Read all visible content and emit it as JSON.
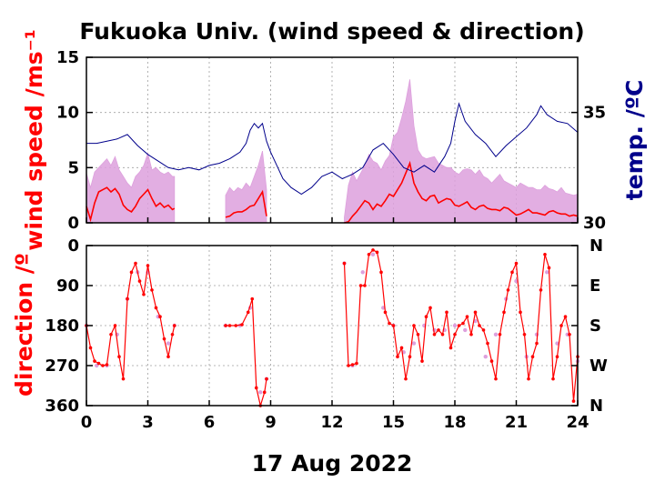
{
  "title": "Fukuoka Univ. (wind speed & direction)",
  "date_label": "17 Aug 2022",
  "colors": {
    "wind_mean": "#ff0000",
    "wind_gust": "#dda0dd",
    "temperature": "#00008b",
    "direction_mean": "#ff0000",
    "direction_scatter": "#dda0dd",
    "axis": "#000000",
    "grid": "#a0a0a0"
  },
  "chart_data": [
    {
      "type": "area",
      "panel": "speed",
      "ylabel": "wind speed /ms⁻¹",
      "y2label": "temp. /ºC",
      "xlim": [
        0,
        24
      ],
      "ylim": [
        0,
        15
      ],
      "y2lim": [
        30,
        37.5
      ],
      "x_ticks": [
        "0",
        "3",
        "6",
        "9",
        "12",
        "15",
        "18",
        "21",
        "24"
      ],
      "y_ticks": [
        "0",
        "5",
        "10",
        "15"
      ],
      "y2_ticks": [
        "30",
        "35"
      ],
      "grid": true,
      "data_gaps_hours": [
        [
          4.3,
          6.8
        ],
        [
          8.8,
          12.6
        ]
      ],
      "series": [
        {
          "name": "mean wind speed",
          "x": [
            0,
            0.2,
            0.4,
            0.6,
            0.8,
            1.0,
            1.2,
            1.4,
            1.6,
            1.8,
            2.0,
            2.2,
            2.4,
            2.6,
            2.8,
            3.0,
            3.2,
            3.4,
            3.6,
            3.8,
            4.0,
            4.2,
            4.3,
            6.8,
            7.0,
            7.2,
            7.4,
            7.6,
            7.8,
            8.0,
            8.2,
            8.4,
            8.6,
            8.8,
            12.6,
            12.8,
            13.0,
            13.2,
            13.4,
            13.6,
            13.8,
            14.0,
            14.2,
            14.4,
            14.6,
            14.8,
            15.0,
            15.2,
            15.4,
            15.6,
            15.8,
            16.0,
            16.2,
            16.4,
            16.6,
            16.8,
            17.0,
            17.2,
            17.4,
            17.6,
            17.8,
            18.0,
            18.2,
            18.4,
            18.6,
            18.8,
            19.0,
            19.2,
            19.4,
            19.6,
            19.8,
            20.0,
            20.2,
            20.4,
            20.6,
            20.8,
            21.0,
            21.2,
            21.4,
            21.6,
            21.8,
            22.0,
            22.2,
            22.4,
            22.6,
            22.8,
            23.0,
            23.2,
            23.4,
            23.6,
            23.8,
            24.0
          ],
          "values": [
            1.5,
            0.3,
            1.8,
            2.8,
            3.0,
            3.2,
            2.8,
            3.1,
            2.6,
            1.6,
            1.2,
            1.0,
            1.5,
            2.2,
            2.6,
            3.0,
            2.2,
            1.5,
            1.8,
            1.4,
            1.6,
            1.2,
            1.3,
            0.5,
            0.6,
            0.9,
            1.0,
            1.0,
            1.2,
            1.5,
            1.6,
            2.2,
            2.8,
            0.6,
            0.0,
            0.1,
            0.6,
            1.0,
            1.5,
            2.0,
            1.8,
            1.2,
            1.7,
            1.5,
            2.0,
            2.6,
            2.4,
            3.0,
            3.6,
            4.5,
            5.4,
            3.6,
            2.8,
            2.2,
            2.0,
            2.4,
            2.5,
            1.8,
            2.0,
            2.2,
            2.1,
            1.6,
            1.5,
            1.7,
            1.9,
            1.4,
            1.2,
            1.5,
            1.6,
            1.3,
            1.2,
            1.2,
            1.1,
            1.4,
            1.3,
            1.0,
            0.7,
            0.8,
            1.0,
            1.2,
            0.9,
            0.9,
            0.8,
            0.7,
            1.0,
            1.1,
            0.9,
            0.8,
            0.8,
            0.6,
            0.7,
            0.6
          ]
        },
        {
          "name": "gust",
          "x": [
            0,
            0.2,
            0.4,
            0.6,
            0.8,
            1.0,
            1.2,
            1.4,
            1.6,
            1.8,
            2.0,
            2.2,
            2.4,
            2.6,
            2.8,
            3.0,
            3.2,
            3.4,
            3.6,
            3.8,
            4.0,
            4.2,
            4.3,
            6.8,
            7.0,
            7.2,
            7.4,
            7.6,
            7.8,
            8.0,
            8.2,
            8.4,
            8.6,
            8.8,
            12.6,
            12.8,
            13.0,
            13.2,
            13.4,
            13.6,
            13.8,
            14.0,
            14.2,
            14.4,
            14.6,
            14.8,
            15.0,
            15.2,
            15.4,
            15.6,
            15.8,
            16.0,
            16.2,
            16.4,
            16.6,
            16.8,
            17.0,
            17.2,
            17.4,
            17.6,
            17.8,
            18.0,
            18.2,
            18.4,
            18.6,
            18.8,
            19.0,
            19.2,
            19.4,
            19.6,
            19.8,
            20.0,
            20.2,
            20.4,
            20.6,
            20.8,
            21.0,
            21.2,
            21.4,
            21.6,
            21.8,
            22.0,
            22.2,
            22.4,
            22.6,
            22.8,
            23.0,
            23.2,
            23.4,
            23.6,
            23.8,
            24.0
          ],
          "values": [
            4.5,
            3.2,
            4.6,
            5.0,
            5.4,
            5.8,
            5.2,
            6.0,
            4.8,
            4.2,
            3.6,
            3.2,
            4.2,
            4.6,
            5.2,
            6.3,
            4.8,
            5.0,
            4.6,
            4.4,
            4.6,
            4.2,
            4.2,
            2.5,
            3.2,
            2.8,
            3.2,
            3.0,
            3.6,
            3.2,
            4.2,
            5.2,
            6.5,
            3.0,
            0.5,
            3.4,
            4.6,
            3.8,
            4.5,
            5.2,
            6.2,
            5.6,
            5.4,
            4.8,
            5.6,
            6.1,
            7.8,
            8.2,
            9.5,
            11.0,
            13.0,
            8.8,
            6.6,
            6.0,
            5.8,
            5.9,
            6.0,
            5.4,
            5.2,
            5.0,
            5.0,
            4.6,
            4.4,
            4.8,
            4.9,
            4.8,
            4.4,
            4.8,
            4.2,
            4.0,
            3.6,
            4.0,
            4.4,
            3.8,
            3.6,
            3.4,
            3.2,
            3.6,
            3.4,
            3.2,
            3.2,
            3.0,
            3.0,
            3.4,
            3.1,
            3.0,
            2.8,
            3.2,
            2.7,
            2.6,
            2.5,
            2.6
          ]
        },
        {
          "name": "temperature",
          "axis": "y2",
          "x": [
            0,
            0.5,
            1.0,
            1.5,
            2.0,
            2.5,
            3.0,
            3.5,
            4.0,
            4.5,
            5.0,
            5.5,
            6.0,
            6.5,
            7.0,
            7.5,
            7.8,
            8.0,
            8.2,
            8.4,
            8.6,
            8.8,
            9.0,
            9.3,
            9.6,
            10.0,
            10.5,
            11.0,
            11.5,
            12.0,
            12.5,
            13.0,
            13.5,
            14.0,
            14.5,
            15.0,
            15.5,
            16.0,
            16.5,
            17.0,
            17.5,
            17.8,
            18.0,
            18.2,
            18.5,
            19.0,
            19.5,
            20.0,
            20.5,
            21.0,
            21.5,
            22.0,
            22.2,
            22.5,
            23.0,
            23.5,
            24.0
          ],
          "values": [
            33.6,
            33.6,
            33.7,
            33.8,
            34.0,
            33.5,
            33.1,
            32.8,
            32.5,
            32.4,
            32.5,
            32.4,
            32.6,
            32.7,
            32.9,
            33.2,
            33.6,
            34.2,
            34.5,
            34.3,
            34.5,
            33.7,
            33.2,
            32.6,
            32.0,
            31.6,
            31.3,
            31.6,
            32.1,
            32.3,
            32.0,
            32.2,
            32.5,
            33.3,
            33.6,
            33.1,
            32.5,
            32.3,
            32.6,
            32.3,
            33.0,
            33.6,
            34.6,
            35.4,
            34.6,
            34.0,
            33.6,
            33.0,
            33.5,
            33.9,
            34.3,
            34.9,
            35.3,
            34.9,
            34.6,
            34.5,
            34.1
          ]
        }
      ]
    },
    {
      "type": "scatter",
      "panel": "direction",
      "ylabel": "direction /º",
      "xlabel": "17 Aug 2022",
      "xlim": [
        0,
        24
      ],
      "ylim": [
        0,
        360
      ],
      "y_axis_inverted": true,
      "x_ticks": [
        "0",
        "3",
        "6",
        "9",
        "12",
        "15",
        "18",
        "21",
        "24"
      ],
      "y_ticks": [
        "0",
        "90",
        "180",
        "270",
        "360"
      ],
      "y2_ticks": [
        "N",
        "E",
        "S",
        "W",
        "N"
      ],
      "grid": true,
      "series": [
        {
          "name": "mean direction",
          "x": [
            0,
            0.2,
            0.4,
            0.6,
            0.8,
            1.0,
            1.2,
            1.4,
            1.6,
            1.8,
            2.0,
            2.2,
            2.4,
            2.6,
            2.8,
            3.0,
            3.2,
            3.4,
            3.6,
            3.8,
            4.0,
            4.2,
            4.3,
            6.8,
            7.0,
            7.3,
            7.6,
            7.9,
            8.1,
            8.3,
            8.5,
            8.7,
            8.8,
            12.6,
            12.8,
            13.0,
            13.2,
            13.4,
            13.6,
            13.8,
            14.0,
            14.2,
            14.4,
            14.6,
            14.8,
            15.0,
            15.2,
            15.4,
            15.6,
            15.8,
            16.0,
            16.2,
            16.4,
            16.6,
            16.8,
            17.0,
            17.2,
            17.4,
            17.6,
            17.8,
            18.0,
            18.2,
            18.4,
            18.6,
            18.8,
            19.0,
            19.2,
            19.4,
            19.6,
            19.8,
            20.0,
            20.2,
            20.4,
            20.6,
            20.8,
            21.0,
            21.2,
            21.4,
            21.6,
            21.8,
            22.0,
            22.2,
            22.4,
            22.6,
            22.8,
            23.0,
            23.2,
            23.4,
            23.6,
            23.8,
            24.0
          ],
          "values": [
            180,
            230,
            260,
            265,
            270,
            268,
            200,
            180,
            250,
            300,
            120,
            60,
            40,
            80,
            110,
            45,
            100,
            140,
            160,
            210,
            250,
            200,
            180,
            180,
            180,
            180,
            178,
            150,
            120,
            320,
            360,
            330,
            300,
            40,
            270,
            268,
            265,
            90,
            90,
            20,
            10,
            15,
            60,
            150,
            175,
            180,
            250,
            230,
            300,
            250,
            180,
            200,
            260,
            160,
            140,
            200,
            190,
            200,
            150,
            230,
            200,
            180,
            175,
            160,
            200,
            150,
            180,
            190,
            220,
            260,
            300,
            200,
            150,
            100,
            60,
            40,
            150,
            200,
            300,
            250,
            220,
            100,
            20,
            50,
            300,
            250,
            180,
            160,
            200,
            350,
            250
          ]
        },
        {
          "name": "direction samples",
          "x": [
            0,
            0.5,
            1.0,
            1.5,
            2.0,
            2.5,
            3.0,
            3.5,
            4.0,
            4.3,
            6.8,
            7.5,
            8.0,
            8.5,
            8.8,
            12.6,
            13.0,
            13.5,
            14.0,
            14.5,
            15.0,
            15.5,
            16.0,
            16.5,
            17.0,
            17.5,
            18.0,
            18.5,
            19.0,
            19.5,
            20.0,
            20.5,
            21.0,
            21.5,
            22.0,
            22.5,
            23.0,
            23.5,
            24.0
          ],
          "values": [
            180,
            270,
            270,
            200,
            120,
            60,
            60,
            160,
            220,
            180,
            180,
            180,
            140,
            330,
            300,
            40,
            270,
            60,
            20,
            140,
            180,
            240,
            220,
            180,
            190,
            190,
            180,
            190,
            170,
            250,
            200,
            120,
            80,
            250,
            200,
            60,
            220,
            200,
            260
          ]
        }
      ]
    }
  ]
}
